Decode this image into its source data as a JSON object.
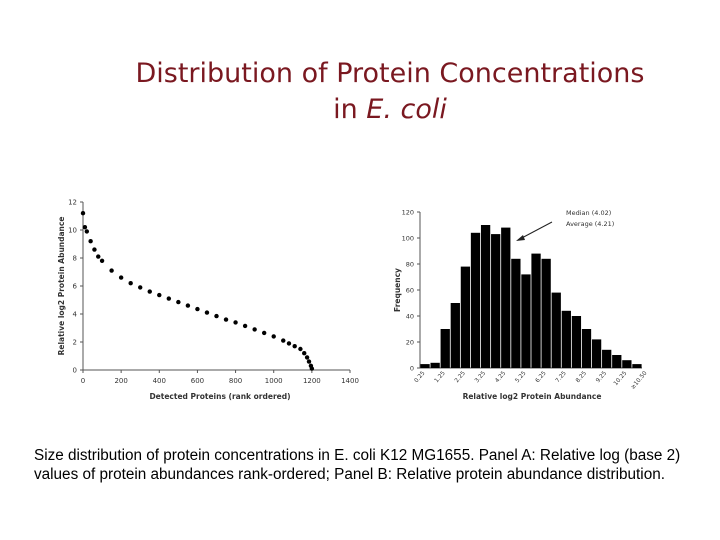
{
  "slide": {
    "title_line1": "Distribution of Protein Concentrations",
    "title_line2_prefix": "in ",
    "title_line2_italic": "E. coli",
    "caption": "Size distribution of protein concentrations in E. coli K12 MG1655. Panel A: Relative log (base 2) values of protein abundances rank-ordered; Panel B: Relative protein abundance distribution."
  },
  "chart_data": [
    {
      "type": "scatter",
      "title": "",
      "xlabel": "Detected Proteins (rank ordered)",
      "ylabel": "Relative log2 Protein Abundance",
      "xlim": [
        0,
        1400
      ],
      "ylim": [
        0,
        12
      ],
      "xticks": [
        "0",
        "200",
        "400",
        "600",
        "800",
        "1000",
        "1200",
        "1400"
      ],
      "yticks": [
        "0",
        "2",
        "4",
        "6",
        "8",
        "10",
        "12"
      ],
      "grid": false,
      "color": "#000000",
      "x": [
        0,
        10,
        20,
        40,
        60,
        80,
        100,
        150,
        200,
        250,
        300,
        350,
        400,
        450,
        500,
        550,
        600,
        650,
        700,
        750,
        800,
        850,
        900,
        950,
        1000,
        1050,
        1080,
        1110,
        1140,
        1160,
        1175,
        1185,
        1195,
        1200
      ],
      "y": [
        11.2,
        10.2,
        9.9,
        9.2,
        8.6,
        8.1,
        7.8,
        7.1,
        6.6,
        6.2,
        5.9,
        5.6,
        5.35,
        5.1,
        4.85,
        4.6,
        4.35,
        4.1,
        3.85,
        3.6,
        3.4,
        3.15,
        2.9,
        2.65,
        2.4,
        2.1,
        1.9,
        1.7,
        1.5,
        1.2,
        0.9,
        0.6,
        0.3,
        0.1
      ]
    },
    {
      "type": "bar",
      "title": "",
      "xlabel": "Relative log2 Protein Abundance",
      "ylabel": "Frequency",
      "categories": [
        "0.25",
        "0.75",
        "1.25",
        "1.75",
        "2.25",
        "2.75",
        "3.25",
        "3.75",
        "4.25",
        "4.75",
        "5.25",
        "5.75",
        "6.25",
        "6.75",
        "7.25",
        "7.75",
        "8.25",
        "8.75",
        "9.25",
        "9.75",
        "10.25",
        "10.75"
      ],
      "values": [
        3,
        4,
        30,
        50,
        78,
        104,
        110,
        103,
        108,
        84,
        72,
        88,
        84,
        58,
        44,
        40,
        30,
        22,
        14,
        10,
        6,
        3
      ],
      "xtick_labels": [
        "0.25",
        "1.25",
        "2.25",
        "3.25",
        "4.25",
        "5.25",
        "6.25",
        "7.25",
        "8.25",
        "9.25",
        "10.25",
        "≥10.50"
      ],
      "ylim": [
        0,
        120
      ],
      "yticks": [
        "0",
        "20",
        "40",
        "60",
        "80",
        "100",
        "120"
      ],
      "grid": false,
      "bar_color": "#000000",
      "annotation": {
        "line1": "Median (4.02)",
        "line2": "Average (4.21)"
      }
    }
  ]
}
